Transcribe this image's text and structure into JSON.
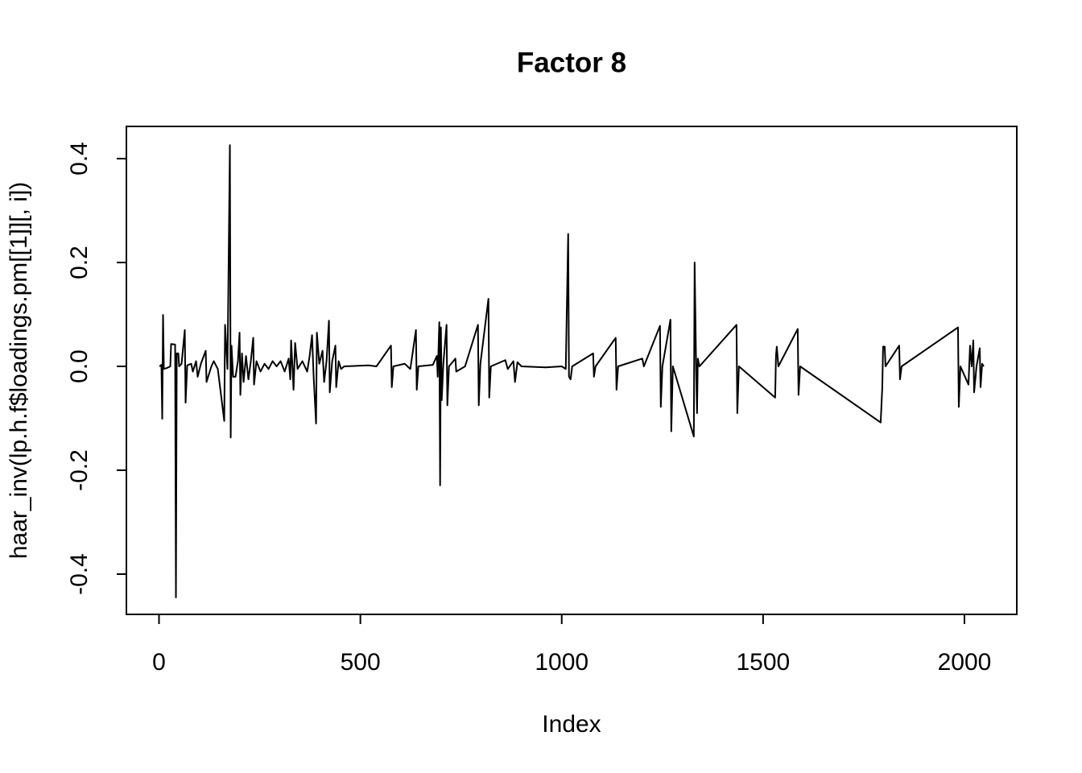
{
  "chart_data": {
    "type": "line",
    "title": "Factor 8",
    "xlabel": "Index",
    "ylabel": "haar_inv(lp.h.f$loadings.pm[[1]][, i])",
    "color": "#000000",
    "xlim": [
      -81,
      2130
    ],
    "ylim": [
      -0.4775,
      0.462
    ],
    "xticks": [
      0,
      500,
      1000,
      1500,
      2000
    ],
    "yticks": [
      -0.4,
      -0.2,
      {
        "value": 0,
        "label": "0.0"
      },
      0.2,
      0.4
    ],
    "x": [
      1,
      6,
      8,
      10,
      12,
      20,
      28,
      30,
      40,
      42,
      44,
      48,
      50,
      56,
      64,
      66,
      70,
      80,
      84,
      92,
      96,
      104,
      116,
      118,
      130,
      136,
      146,
      162,
      164,
      170,
      176,
      178,
      180,
      184,
      190,
      196,
      200,
      202,
      206,
      210,
      216,
      222,
      228,
      234,
      236,
      242,
      252,
      262,
      272,
      282,
      292,
      302,
      312,
      322,
      326,
      328,
      332,
      334,
      338,
      344,
      356,
      368,
      374,
      380,
      384,
      390,
      392,
      398,
      406,
      410,
      416,
      422,
      424,
      430,
      438,
      440,
      446,
      452,
      460,
      520,
      540,
      576,
      578,
      582,
      610,
      624,
      638,
      640,
      644,
      680,
      690,
      692,
      696,
      698,
      700,
      702,
      706,
      714,
      716,
      720,
      736,
      738,
      760,
      792,
      794,
      798,
      818,
      820,
      824,
      860,
      866,
      880,
      884,
      890,
      900,
      960,
      1000,
      1010,
      1016,
      1018,
      1022,
      1026,
      1078,
      1080,
      1084,
      1134,
      1136,
      1140,
      1200,
      1204,
      1244,
      1246,
      1250,
      1270,
      1272,
      1276,
      1328,
      1330,
      1334,
      1336,
      1338,
      1342,
      1434,
      1436,
      1440,
      1530,
      1532,
      1534,
      1538,
      1586,
      1588,
      1592,
      1792,
      1796,
      1798,
      1802,
      1804,
      1838,
      1840,
      1844,
      1984,
      1986,
      1990,
      2010,
      2014,
      2018,
      2022,
      2024,
      2030,
      2038,
      2040,
      2044,
      2048
    ],
    "values": [
      0,
      0.003,
      -0.101,
      0.099,
      -0.005,
      -0.003,
      0,
      0.043,
      0.042,
      -0.445,
      0.025,
      0.025,
      0,
      0.005,
      0.07,
      -0.07,
      0.002,
      0.005,
      -0.01,
      0.01,
      -0.02,
      0.005,
      0.03,
      -0.03,
      0,
      0.01,
      -0.005,
      -0.105,
      0.08,
      -0.005,
      0.426,
      -0.137,
      0.04,
      -0.02,
      -0.02,
      0.01,
      0.065,
      -0.055,
      0.025,
      -0.03,
      0.02,
      -0.025,
      0.01,
      0.055,
      -0.035,
      0.01,
      -0.01,
      0.005,
      -0.005,
      0.01,
      0,
      0.01,
      -0.01,
      0.015,
      -0.025,
      0.05,
      -0.01,
      -0.045,
      0.045,
      -0.005,
      0.01,
      -0.01,
      0.02,
      0.06,
      -0.02,
      -0.11,
      0.065,
      0.005,
      0.03,
      -0.03,
      0.01,
      0.088,
      -0.05,
      0.01,
      0.04,
      -0.04,
      0.01,
      -0.005,
      0,
      0.002,
      0,
      0.04,
      -0.04,
      0,
      0.005,
      -0.005,
      0.07,
      -0.045,
      0,
      0.003,
      0.02,
      -0.02,
      0.085,
      -0.229,
      0.075,
      -0.065,
      0.005,
      0.08,
      -0.075,
      0,
      0.015,
      -0.01,
      0,
      0.08,
      -0.075,
      0.005,
      0.13,
      -0.06,
      0,
      0.012,
      -0.005,
      0.01,
      -0.03,
      0.008,
      0,
      -0.002,
      0,
      -0.005,
      0.255,
      -0.02,
      -0.025,
      0,
      0.025,
      -0.02,
      0,
      0.055,
      -0.045,
      0,
      0.015,
      0,
      0.078,
      -0.078,
      0,
      0.09,
      -0.125,
      0,
      -0.135,
      0.2,
      -0.015,
      -0.09,
      0.015,
      0,
      0.08,
      -0.09,
      0,
      -0.06,
      0.02,
      0.038,
      0,
      0.072,
      -0.055,
      0,
      -0.108,
      -0.04,
      0.038,
      0.038,
      0,
      0.04,
      -0.025,
      0,
      0.075,
      -0.078,
      0,
      -0.035,
      0.04,
      0,
      0.05,
      -0.05,
      0,
      0.035,
      -0.04,
      0.005,
      0
    ]
  }
}
